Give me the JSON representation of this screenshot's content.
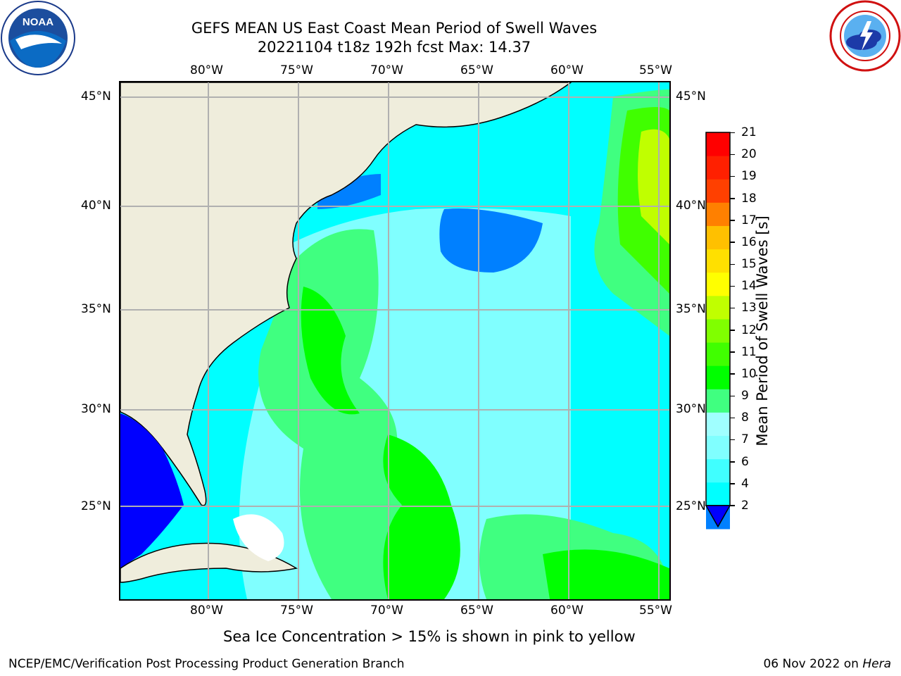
{
  "header": {
    "title_line1": "GEFS MEAN US East Coast Mean Period of Swell Waves",
    "title_line2": "20221104 t18z 192h fcst   Max: 14.37"
  },
  "logos": {
    "noaa": {
      "text": "NOAA",
      "ring_text": "NATIONAL OCEANIC AND ATMOSPHERIC ADMINISTRATION · U.S. DEPARTMENT OF COMMERCE"
    },
    "nws": {
      "ring_text": "NATIONAL WEATHER SERVICE"
    }
  },
  "map": {
    "lon_labels": [
      "80°W",
      "75°W",
      "70°W",
      "65°W",
      "60°W",
      "55°W"
    ],
    "lat_labels": [
      "45°N",
      "40°N",
      "35°N",
      "30°N",
      "25°N"
    ],
    "lon_range": [
      -85,
      -54.4
    ],
    "lat_range": [
      20.5,
      45.8
    ],
    "land_color": "#efeddc",
    "ocean_base_color": "#00ffff"
  },
  "colorbar": {
    "label": "Mean Period of Swell Waves [s]",
    "ticks": [
      "2",
      "4",
      "6",
      "7",
      "8",
      "9",
      "10",
      "11",
      "12",
      "13",
      "14",
      "15",
      "16",
      "17",
      "18",
      "19",
      "20",
      "21"
    ],
    "colors": [
      "#0000ff",
      "#0080ff",
      "#00ffff",
      "#40ffff",
      "#80ffff",
      "#a0ffff",
      "#40ff80",
      "#00ff00",
      "#40ff00",
      "#80ff00",
      "#c0ff00",
      "#ffff00",
      "#ffe000",
      "#ffc000",
      "#ff8000",
      "#ff4000",
      "#ff2000",
      "#ff0000"
    ],
    "under_color": "#0000ff"
  },
  "notes": {
    "sea_ice": "Sea Ice Concentration > 15% is shown in pink to yellow"
  },
  "footer": {
    "left": "NCEP/EMC/Verification Post Processing Product Generation Branch",
    "date": "06 Nov 2022",
    "on": "on",
    "host": "Hera"
  }
}
